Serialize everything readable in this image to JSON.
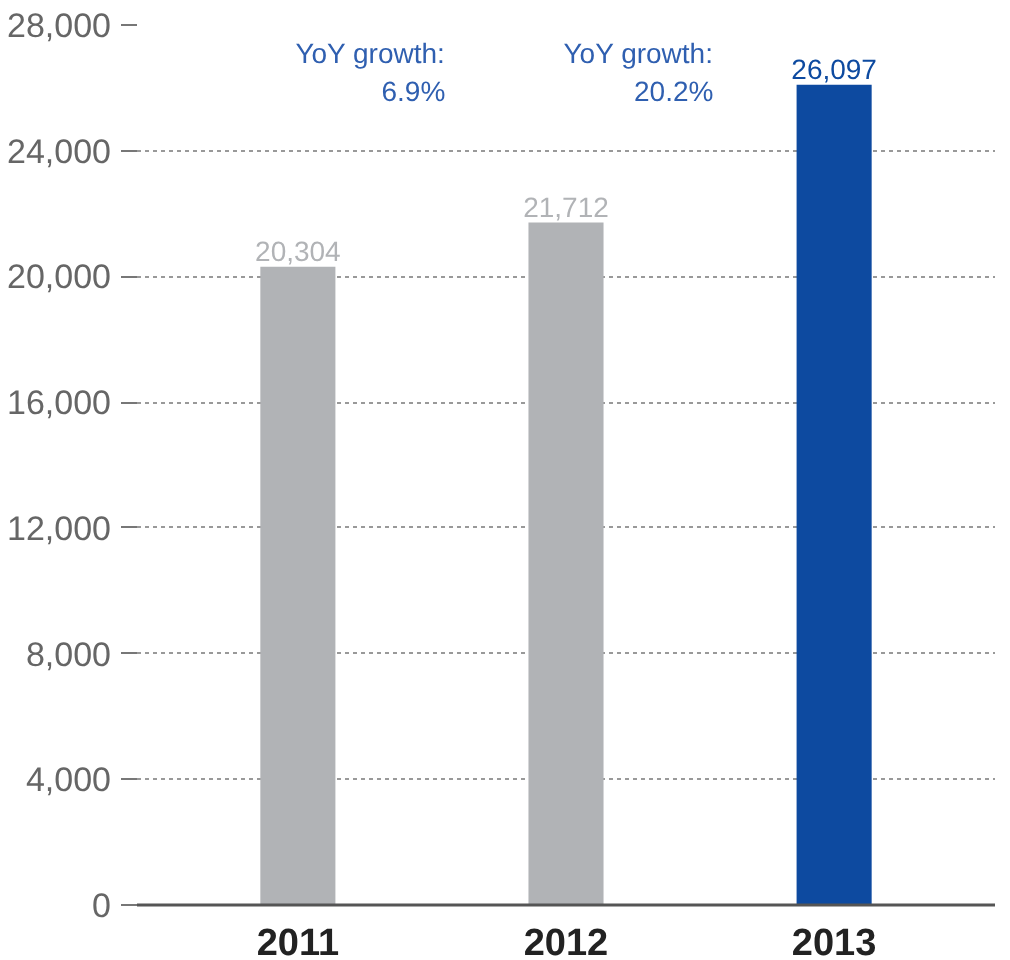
{
  "chart_data": {
    "type": "bar",
    "categories": [
      "2011",
      "2012",
      "2013"
    ],
    "values": [
      20304,
      21712,
      26097
    ],
    "colors": [
      "#b1b3b6",
      "#b1b3b6",
      "#0d4aa0"
    ],
    "value_labels": [
      "20,304",
      "21,712",
      "26,097"
    ],
    "ylim": [
      0,
      28000
    ],
    "yticks": [
      {
        "value": 0,
        "label": "0"
      },
      {
        "value": 4000,
        "label": "4,000"
      },
      {
        "value": 8000,
        "label": "8,000"
      },
      {
        "value": 12000,
        "label": "12,000"
      },
      {
        "value": 16000,
        "label": "16,000"
      },
      {
        "value": 20000,
        "label": "20,000"
      },
      {
        "value": 24000,
        "label": "24,000"
      },
      {
        "value": 28000,
        "label": "28,000"
      }
    ],
    "grid": "y",
    "annotations": [
      "YoY growth:\n6.9%",
      "YoY growth:\n20.2%"
    ]
  }
}
